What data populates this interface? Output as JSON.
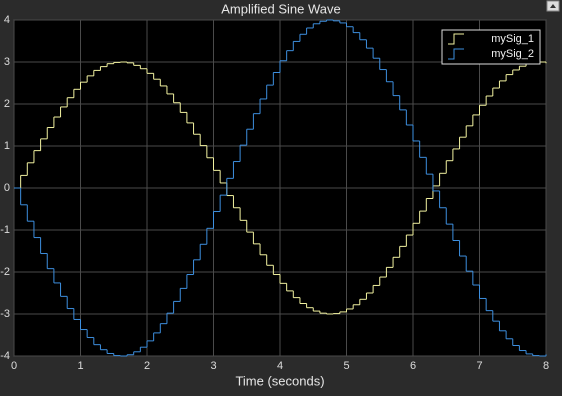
{
  "chart_data": {
    "type": "stairs",
    "title": "Amplified Sine Wave",
    "x_label": "Time (seconds)",
    "x": [
      0,
      0.1,
      0.2,
      0.3,
      0.4,
      0.5,
      0.6,
      0.7,
      0.8,
      0.9,
      1,
      1.1,
      1.2,
      1.3,
      1.4,
      1.5,
      1.6,
      1.7,
      1.8,
      1.9,
      2,
      2.1,
      2.2,
      2.3,
      2.4,
      2.5,
      2.6,
      2.7,
      2.8,
      2.9,
      3,
      3.1,
      3.2,
      3.3,
      3.4,
      3.5,
      3.6,
      3.7,
      3.8,
      3.9,
      4,
      4.1,
      4.2,
      4.3,
      4.4,
      4.5,
      4.6,
      4.7,
      4.8,
      4.9,
      5,
      5.1,
      5.2,
      5.3,
      5.4,
      5.5,
      5.6,
      5.7,
      5.8,
      5.9,
      6,
      6.1,
      6.2,
      6.3,
      6.4,
      6.5,
      6.6,
      6.7,
      6.8,
      6.9,
      7,
      7.1,
      7.2,
      7.3,
      7.4,
      7.5,
      7.6,
      7.7,
      7.8,
      7.9,
      8
    ],
    "series": [
      {
        "name": "mySig_1",
        "color": "#f2f2a0",
        "values": [
          0,
          0.3,
          0.6,
          0.89,
          1.17,
          1.44,
          1.69,
          1.93,
          2.15,
          2.35,
          2.52,
          2.67,
          2.8,
          2.89,
          2.96,
          2.99,
          3,
          2.98,
          2.92,
          2.84,
          2.73,
          2.59,
          2.43,
          2.24,
          2.03,
          1.8,
          1.55,
          1.28,
          1.01,
          0.72,
          0.42,
          0.12,
          -0.18,
          -0.47,
          -0.77,
          -1.05,
          -1.33,
          -1.59,
          -1.84,
          -2.06,
          -2.27,
          -2.45,
          -2.61,
          -2.75,
          -2.85,
          -2.93,
          -2.98,
          -3,
          -2.99,
          -2.95,
          -2.88,
          -2.78,
          -2.65,
          -2.5,
          -2.32,
          -2.12,
          -1.89,
          -1.65,
          -1.39,
          -1.12,
          -0.84,
          -0.55,
          -0.25,
          0.05,
          0.35,
          0.65,
          0.93,
          1.21,
          1.48,
          1.74,
          1.97,
          2.19,
          2.38,
          2.55,
          2.7,
          2.81,
          2.9,
          2.96,
          3,
          3,
          2.97
        ]
      },
      {
        "name": "mySig_2",
        "color": "#3d8fdf",
        "values": [
          0,
          -0.4,
          -0.79,
          -1.18,
          -1.56,
          -1.92,
          -2.26,
          -2.58,
          -2.87,
          -3.13,
          -3.37,
          -3.56,
          -3.73,
          -3.85,
          -3.94,
          -3.99,
          -4,
          -3.97,
          -3.9,
          -3.79,
          -3.64,
          -3.45,
          -3.23,
          -2.98,
          -2.7,
          -2.39,
          -2.06,
          -1.71,
          -1.34,
          -0.96,
          -0.56,
          -0.17,
          0.23,
          0.63,
          1.02,
          1.4,
          1.77,
          2.12,
          2.45,
          2.75,
          3.03,
          3.27,
          3.49,
          3.66,
          3.81,
          3.91,
          3.97,
          4,
          3.98,
          3.93,
          3.84,
          3.7,
          3.53,
          3.33,
          3.09,
          2.82,
          2.53,
          2.2,
          1.86,
          1.5,
          1.12,
          0.73,
          0.33,
          -0.07,
          -0.47,
          -0.86,
          -1.25,
          -1.62,
          -1.98,
          -2.31,
          -2.63,
          -2.92,
          -3.17,
          -3.4,
          -3.59,
          -3.75,
          -3.87,
          -3.95,
          -3.99,
          -4,
          -3.96
        ]
      }
    ],
    "xlim": [
      0,
      8
    ],
    "xticks": [
      0,
      1,
      2,
      3,
      4,
      5,
      6,
      7,
      8
    ],
    "ylim": [
      -4,
      4
    ],
    "yticks": [
      -4,
      -3,
      -2,
      -1,
      0,
      1,
      2,
      3,
      4
    ],
    "grid": true,
    "legend": "upper right"
  }
}
